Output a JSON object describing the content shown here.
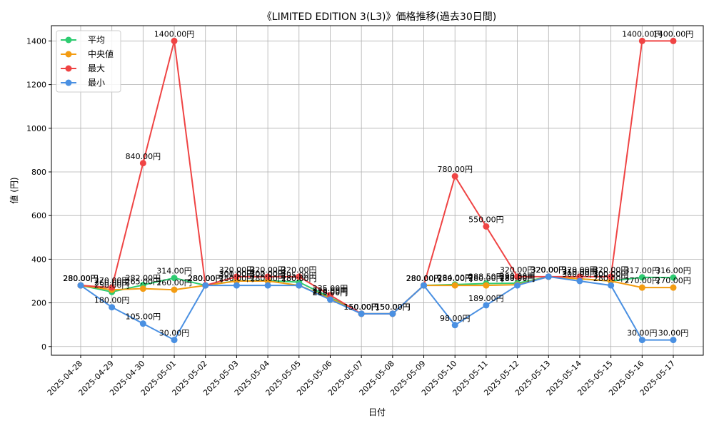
{
  "chart_data": {
    "type": "line",
    "title": "《LIMITED EDITION 3(L3)》価格推移(過去30日間)",
    "xlabel": "日付",
    "ylabel": "値 (円)",
    "ylim": [
      -40,
      1470
    ],
    "yticks": [
      0,
      200,
      400,
      600,
      800,
      1000,
      1200,
      1400
    ],
    "grid": true,
    "legend_position": "top-left",
    "categories": [
      "2025-04-28",
      "2025-04-29",
      "2025-04-30",
      "2025-05-01",
      "2025-05-02",
      "2025-05-03",
      "2025-05-04",
      "2025-05-05",
      "2025-05-06",
      "2025-05-07",
      "2025-05-08",
      "2025-05-09",
      "2025-05-10",
      "2025-05-11",
      "2025-05-12",
      "2025-05-13",
      "2025-05-14",
      "2025-05-15",
      "2025-05-16",
      "2025-05-17"
    ],
    "series": [
      {
        "name": "平均",
        "color": "#2ecc71",
        "values": [
          280,
          250,
          282,
          314,
          280,
          301,
          302,
          295,
          225,
          150,
          150,
          280,
          284,
          288.5,
          290,
          320,
          310,
          300,
          317,
          316
        ]
      },
      {
        "name": "中央値",
        "color": "#f39c12",
        "values": [
          280,
          260,
          265,
          260,
          280,
          300,
          300,
          280,
          220,
          150,
          150,
          280,
          280,
          280,
          283,
          320,
          310,
          300,
          270,
          270
        ]
      },
      {
        "name": "最大",
        "color": "#ef4444",
        "values": [
          280,
          270,
          840,
          1400,
          280,
          320,
          320,
          320,
          235,
          150,
          150,
          280,
          780,
          550,
          320,
          320,
          320,
          320,
          1400,
          1400
        ]
      },
      {
        "name": "最小",
        "color": "#4a90e2",
        "values": [
          280,
          180,
          105,
          30,
          280,
          280,
          280,
          280,
          215,
          150,
          150,
          280,
          98,
          189,
          280,
          320,
          300,
          280,
          30,
          30
        ]
      }
    ],
    "label_suffix": "円"
  }
}
